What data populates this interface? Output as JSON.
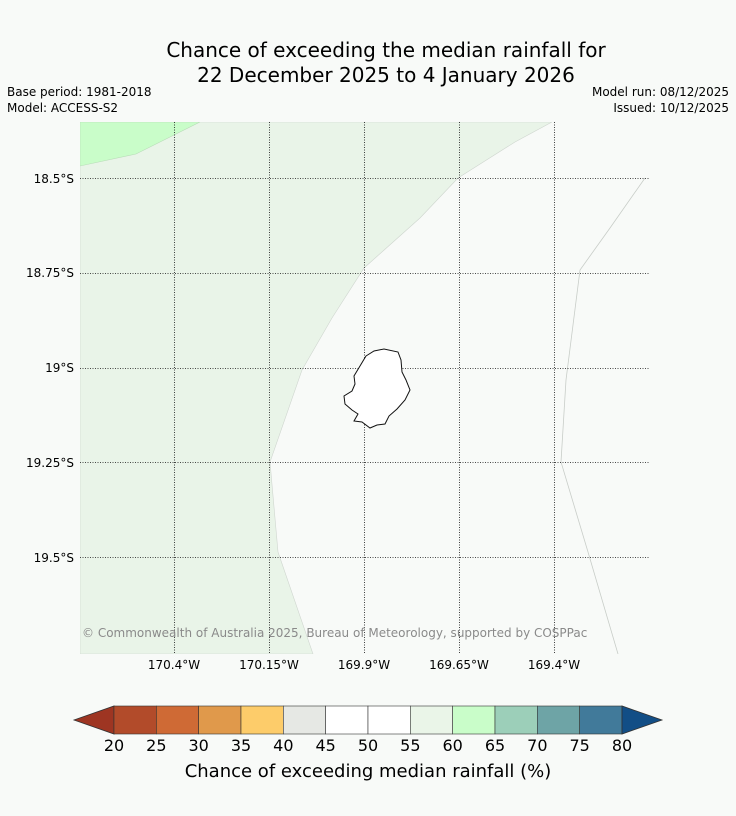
{
  "title_line1": "Chance of exceeding the median rainfall for",
  "title_line2": "22 December 2025 to 4 January 2026",
  "base_period": "Base period: 1981-2018",
  "model": "Model: ACCESS-S2",
  "model_run": "Model run: 08/12/2025",
  "issued": "Issued: 10/12/2025",
  "copyright": "© Commonwealth of Australia 2025, Bureau of Meteorology, supported by COSPPac",
  "lat_labels": [
    "18.5°S",
    "18.75°S",
    "19°S",
    "19.25°S",
    "19.5°S"
  ],
  "lon_labels": [
    "170.4°W",
    "170.15°W",
    "169.9°W",
    "169.65°W",
    "169.4°W"
  ],
  "colorbar": {
    "title": "Chance of exceeding median rainfall (%)",
    "ticks": [
      "20",
      "25",
      "30",
      "35",
      "40",
      "45",
      "50",
      "55",
      "60",
      "65",
      "70",
      "75",
      "80"
    ],
    "colors": [
      "#b24b2a",
      "#cf6a35",
      "#e0994b",
      "#fdcc6a",
      "#e6e8e4",
      "#ffffff",
      "#ffffff",
      "#eaf5e8",
      "#c9fdc9",
      "#9ccfb9",
      "#6ea4a6",
      "#417a9a"
    ],
    "under_color": "#9e3522",
    "over_color": "#124e86"
  },
  "map_colors": {
    "land_55_60": "#e9f4e8",
    "land_60_65": "#c9fdc9",
    "background": "#f8faf8"
  }
}
